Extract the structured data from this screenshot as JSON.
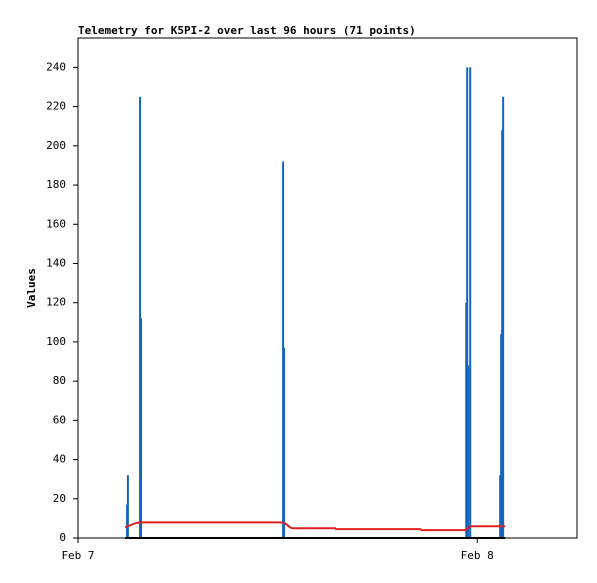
{
  "chart_data": {
    "type": "line",
    "title": "Telemetry for K5PI-2 over last 96 hours (71 points)",
    "y_label": "Values",
    "xlim": [
      0,
      30
    ],
    "xticks": [
      {
        "value": 0,
        "label": "Feb 7"
      },
      {
        "value": 24,
        "label": "Feb 8"
      }
    ],
    "ylim": [
      0,
      255
    ],
    "yticks": [
      0,
      20,
      40,
      60,
      80,
      100,
      120,
      140,
      160,
      180,
      200,
      220,
      240
    ],
    "series": [
      {
        "type": "bar",
        "color": "#1565c0",
        "x": [
          2.95,
          3.0,
          3.73,
          3.79,
          12.33,
          12.39,
          23.34,
          23.4,
          23.46,
          23.58,
          25.38,
          25.44,
          25.5,
          25.56
        ],
        "values": [
          17,
          32,
          225,
          112,
          192,
          97,
          120,
          240,
          88,
          240,
          32,
          104,
          208,
          225
        ]
      },
      {
        "type": "line",
        "color": "#e02020",
        "x": [
          2.83,
          3.13,
          3.43,
          3.73,
          12.15,
          12.45,
          12.75,
          12.87,
          15.46,
          15.52,
          20.57,
          20.69,
          23.28,
          23.58,
          25.68
        ],
        "values": [
          5.5,
          6.5,
          7.5,
          8,
          8,
          7.5,
          5.5,
          5,
          5,
          4.5,
          4.5,
          4,
          4,
          6,
          6
        ]
      },
      {
        "type": "line",
        "color": "#000000",
        "x": [
          2.83,
          25.68
        ],
        "values": [
          0,
          0
        ]
      }
    ]
  }
}
